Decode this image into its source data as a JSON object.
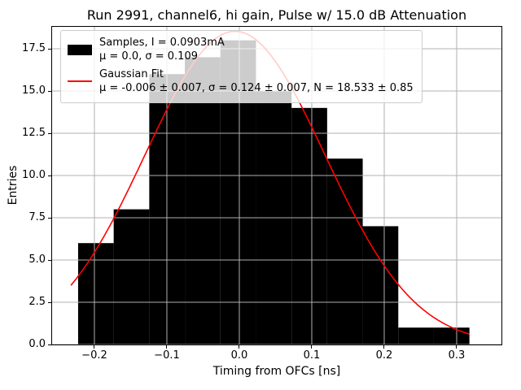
{
  "chart_data": {
    "type": "bar",
    "title": "Run 2991, channel6, hi gain, Pulse w/ 15.0 dB Attenuation",
    "xlabel": "Timing from OFCs [ns]",
    "ylabel": "Entries",
    "xlim": [
      -0.2584,
      0.3618
    ],
    "ylim": [
      0,
      18.8
    ],
    "xticks": [
      -0.2,
      -0.1,
      0.0,
      0.1,
      0.2,
      0.3
    ],
    "yticks": [
      0.0,
      2.5,
      5.0,
      7.5,
      10.0,
      12.5,
      15.0,
      17.5
    ],
    "grid": true,
    "grid_color": "#b0b0b0",
    "histogram": {
      "bin_start": -0.2225,
      "bin_width": 0.0491,
      "counts": [
        6,
        8,
        16,
        17,
        18,
        15,
        14,
        11,
        7,
        1,
        1
      ],
      "color": "#000000"
    },
    "fit": {
      "type": "gaussian",
      "N": 18.533,
      "mu": -0.006,
      "sigma": 0.124,
      "x_range": [
        -0.2325,
        0.3176
      ],
      "color": "#ff0000"
    },
    "legend": {
      "position": "upper left",
      "entries": [
        {
          "handle": "black-patch",
          "line1": "Samples, I = 0.0903mA",
          "line2": "μ = 0.0, σ = 0.109"
        },
        {
          "handle": "red-line",
          "line1": "Gaussian Fit",
          "line2": "μ = -0.006 ± 0.007, σ = 0.124 ± 0.007, N = 18.533 ± 0.85"
        }
      ]
    }
  }
}
